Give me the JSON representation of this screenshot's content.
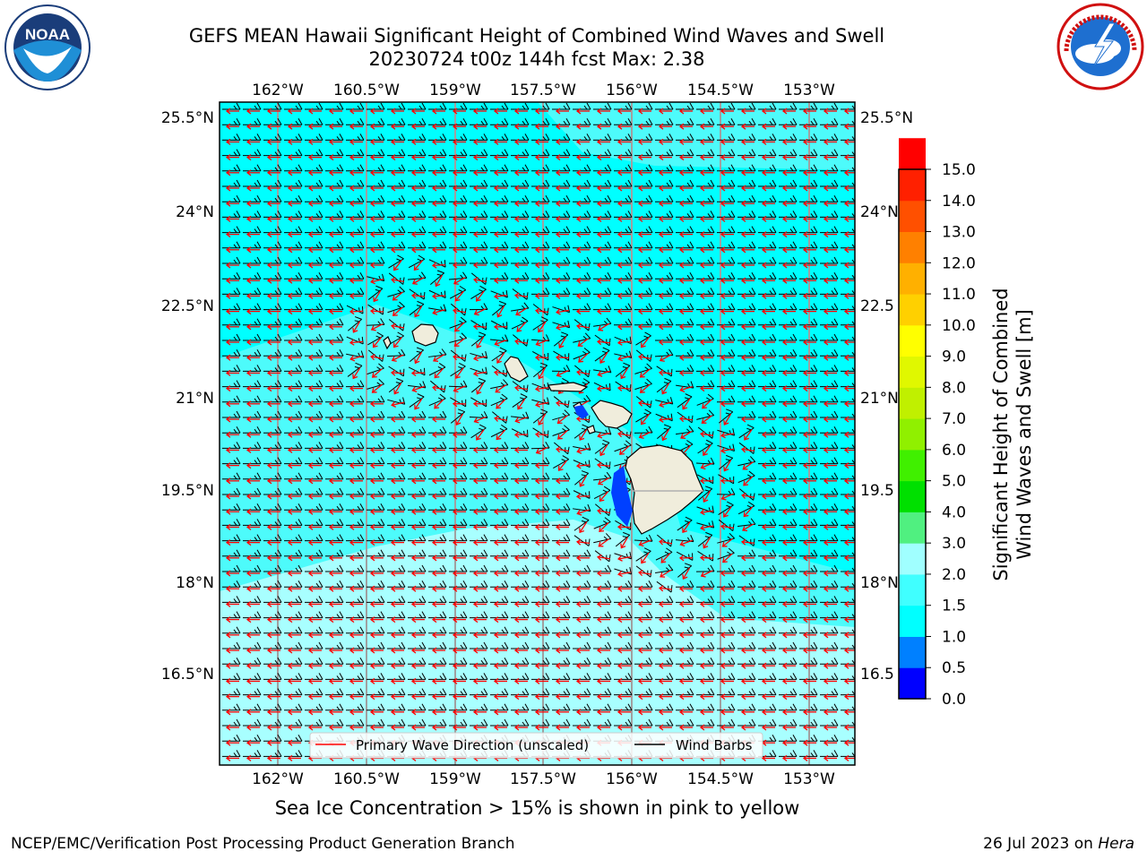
{
  "header": {
    "title_line1": "GEFS MEAN Hawaii Significant Height of Combined Wind Waves and Swell",
    "title_line2": "20230724 t00z 144h fcst   Max: 2.38"
  },
  "logos": {
    "left": {
      "icon": "noaa-logo",
      "text": "NOAA",
      "ring_text": "NATIONAL OCEANIC AND ATMOSPHERIC ADMINISTRATION · U.S. DEPARTMENT OF COMMERCE"
    },
    "right": {
      "icon": "nws-logo",
      "ring_text": "NATIONAL WEATHER SERVICE"
    }
  },
  "map": {
    "lon_labels": [
      "162°W",
      "160.5°W",
      "159°W",
      "157.5°W",
      "156°W",
      "154.5°W",
      "153°W"
    ],
    "lat_labels_left": [
      "25.5°N",
      "24°N",
      "22.5°N",
      "21°N",
      "19.5°N",
      "18°N",
      "16.5°N"
    ],
    "lat_labels_right": [
      "25.5°N",
      "24°N",
      "22.5",
      "21°N",
      "19.5",
      "18°N",
      "16.5"
    ],
    "legend": {
      "wave_direction": "Primary Wave Direction (unscaled)",
      "wind_barbs": "Wind Barbs"
    },
    "colors": {
      "sea_main": "#00ffff",
      "sea_light": "#4dfbfb",
      "sea_south": "#a8ffff",
      "land": "#f0eddc",
      "arrow": "#ff0000",
      "barb": "#000000"
    }
  },
  "colorbar": {
    "label_line1": "Significant Height of Combined",
    "label_line2": "Wind Waves and Swell [m]",
    "ticks": [
      "0.0",
      "0.5",
      "1.0",
      "1.5",
      "2.0",
      "3.0",
      "4.0",
      "5.0",
      "6.0",
      "7.0",
      "8.0",
      "9.0",
      "10.0",
      "11.0",
      "12.0",
      "13.0",
      "14.0",
      "15.0"
    ],
    "colors": [
      "#0000ff",
      "#0080ff",
      "#00ffff",
      "#40ffff",
      "#a0ffff",
      "#50f080",
      "#00e000",
      "#40f000",
      "#90f000",
      "#c0f000",
      "#e0f800",
      "#ffff00",
      "#ffd000",
      "#ffb000",
      "#ff8000",
      "#ff5000",
      "#ff2000",
      "#ff0000"
    ]
  },
  "footer": {
    "sea_ice_note": "Sea Ice Concentration > 15% is shown in pink to yellow",
    "branch": "NCEP/EMC/Verification Post Processing Product Generation Branch",
    "date": "26 Jul 2023 on",
    "host": "Hera"
  }
}
